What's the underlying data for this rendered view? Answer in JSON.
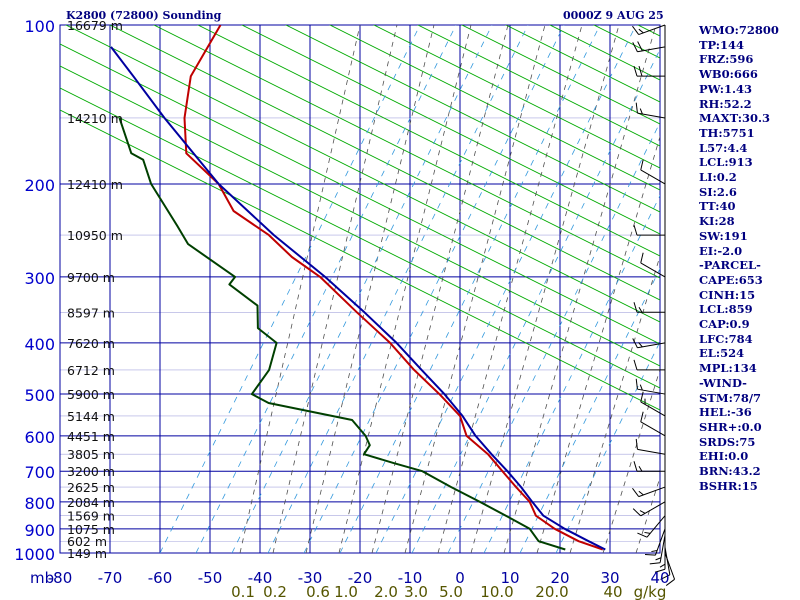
{
  "header": {
    "station": "K2800 (72800) Sounding",
    "valid": "0000Z  9 AUG 25"
  },
  "indices": [
    "WMO:72800",
    "TP:144",
    "FRZ:596",
    "WB0:666",
    "PW:1.43",
    "RH:52.2",
    "MAXT:30.3",
    "TH:5751",
    "L57:4.4",
    "LCL:913",
    "LI:0.2",
    "SI:2.6",
    "TT:40",
    "KI:28",
    "SW:191",
    "EI:-2.0",
    "-PARCEL-",
    "CAPE:653",
    "CINH:15",
    "LCL:859",
    "CAP:0.9",
    "LFC:784",
    "EL:524",
    "MPL:134",
    "-WIND-",
    "STM:78/7",
    "HEL:-36",
    "SHR+:0.0",
    "SRDS:75",
    "EHI:0.0",
    "BRN:43.2",
    "BSHR:15"
  ],
  "chart_data": {
    "type": "line",
    "diagram": "skew-T log-P",
    "title": "K2800 (72800) Sounding",
    "subtitle": "0000Z  9 AUG 25",
    "y_axis": {
      "scale": "log",
      "label": "mb",
      "ticks": [
        100,
        200,
        300,
        400,
        500,
        600,
        700,
        800,
        900,
        1000
      ],
      "range": [
        1000,
        100
      ]
    },
    "x_axis": {
      "ticks": [
        -80,
        -70,
        -60,
        -50,
        -40,
        -30,
        -20,
        -10,
        0,
        10,
        20,
        30,
        40
      ],
      "range": [
        -80,
        40
      ]
    },
    "mixing_ratio_labels": [
      "0.1",
      "0.2",
      "0.6",
      "1.0",
      "2.0",
      "3.0",
      "5.0",
      "10.0",
      "20.0",
      "40",
      "g/kg"
    ],
    "height_labels": [
      {
        "p": 100,
        "label": "16679 m"
      },
      {
        "p": 150,
        "label": "14210 m"
      },
      {
        "p": 200,
        "label": "12410 m"
      },
      {
        "p": 250,
        "label": "10950 m"
      },
      {
        "p": 300,
        "label": "9700 m"
      },
      {
        "p": 350,
        "label": "8597 m"
      },
      {
        "p": 400,
        "label": "7620 m"
      },
      {
        "p": 450,
        "label": "6712 m"
      },
      {
        "p": 500,
        "label": "5900 m"
      },
      {
        "p": 550,
        "label": "5144 m"
      },
      {
        "p": 600,
        "label": "4451 m"
      },
      {
        "p": 650,
        "label": "3805 m"
      },
      {
        "p": 700,
        "label": "3200 m"
      },
      {
        "p": 750,
        "label": "2625 m"
      },
      {
        "p": 800,
        "label": "2084 m"
      },
      {
        "p": 850,
        "label": "1569 m"
      },
      {
        "p": 900,
        "label": "1075 m"
      },
      {
        "p": 950,
        "label": "602 m"
      },
      {
        "p": 1000,
        "label": "149 m"
      }
    ],
    "series": [
      {
        "color": "#c00000",
        "points": [
          [
            985,
            28.5
          ],
          [
            950,
            23.5
          ],
          [
            900,
            18.5
          ],
          [
            850,
            14.5
          ],
          [
            800,
            13.0
          ],
          [
            750,
            10.0
          ],
          [
            700,
            7.0
          ],
          [
            650,
            3.8
          ],
          [
            600,
            -0.8
          ],
          [
            550,
            -2.5
          ],
          [
            500,
            -7.0
          ],
          [
            450,
            -12.5
          ],
          [
            400,
            -17.8
          ],
          [
            350,
            -25.0
          ],
          [
            300,
            -33.0
          ],
          [
            275,
            -39.0
          ],
          [
            250,
            -44.0
          ],
          [
            225,
            -51.5
          ],
          [
            200,
            -55.0
          ],
          [
            175,
            -62.0
          ],
          [
            150,
            -63.0
          ],
          [
            125,
            -62.5
          ],
          [
            100,
            -57.5
          ]
        ]
      },
      {
        "color": "#004000",
        "points": [
          [
            985,
            21.0
          ],
          [
            950,
            15.5
          ],
          [
            900,
            13.5
          ],
          [
            850,
            8.5
          ],
          [
            800,
            3.0
          ],
          [
            750,
            -3.0
          ],
          [
            700,
            -9.0
          ],
          [
            675,
            -15.0
          ],
          [
            650,
            -21.0
          ],
          [
            625,
            -20.0
          ],
          [
            600,
            -21.0
          ],
          [
            560,
            -24.0
          ],
          [
            520,
            -41.0
          ],
          [
            500,
            -44.5
          ],
          [
            450,
            -41.5
          ],
          [
            400,
            -40.5
          ],
          [
            375,
            -44.5
          ],
          [
            340,
            -45.0
          ],
          [
            310,
            -51.0
          ],
          [
            300,
            -50.0
          ],
          [
            260,
            -60.0
          ],
          [
            240,
            -62.5
          ],
          [
            200,
            -68.5
          ],
          [
            180,
            -70.5
          ],
          [
            175,
            -73.0
          ],
          [
            150,
            -76.0
          ]
        ]
      },
      {
        "color": "#0000a0",
        "points": [
          [
            985,
            29.0
          ],
          [
            950,
            25.5
          ],
          [
            900,
            20.5
          ],
          [
            850,
            16.0
          ],
          [
            800,
            13.5
          ],
          [
            750,
            11.0
          ],
          [
            700,
            8.0
          ],
          [
            650,
            4.5
          ],
          [
            600,
            1.0
          ],
          [
            550,
            -2.0
          ],
          [
            500,
            -6.0
          ],
          [
            450,
            -11.0
          ],
          [
            400,
            -16.5
          ],
          [
            350,
            -23.5
          ],
          [
            300,
            -32.0
          ],
          [
            250,
            -43.0
          ],
          [
            200,
            -55.0
          ],
          [
            150,
            -67.0
          ],
          [
            125,
            -74.0
          ],
          [
            110,
            -79.0
          ]
        ]
      }
    ],
    "wind_barbs": [
      {
        "p": 1000,
        "dir": 160,
        "spd": 10
      },
      {
        "p": 975,
        "dir": 170,
        "spd": 10
      },
      {
        "p": 950,
        "dir": 180,
        "spd": 15
      },
      {
        "p": 925,
        "dir": 190,
        "spd": 15
      },
      {
        "p": 900,
        "dir": 200,
        "spd": 15
      },
      {
        "p": 850,
        "dir": 220,
        "spd": 15
      },
      {
        "p": 800,
        "dir": 240,
        "spd": 15
      },
      {
        "p": 750,
        "dir": 250,
        "spd": 15
      },
      {
        "p": 700,
        "dir": 270,
        "spd": 15
      },
      {
        "p": 650,
        "dir": 280,
        "spd": 10
      },
      {
        "p": 600,
        "dir": 300,
        "spd": 10
      },
      {
        "p": 550,
        "dir": 300,
        "spd": 15
      },
      {
        "p": 500,
        "dir": 280,
        "spd": 15
      },
      {
        "p": 450,
        "dir": 270,
        "spd": 10
      },
      {
        "p": 400,
        "dir": 260,
        "spd": 15
      },
      {
        "p": 350,
        "dir": 270,
        "spd": 15
      },
      {
        "p": 300,
        "dir": 300,
        "spd": 10
      },
      {
        "p": 250,
        "dir": 270,
        "spd": 10
      },
      {
        "p": 200,
        "dir": 300,
        "spd": 10
      },
      {
        "p": 150,
        "dir": 280,
        "spd": 15
      },
      {
        "p": 125,
        "dir": 270,
        "spd": 20
      },
      {
        "p": 110,
        "dir": 260,
        "spd": 20
      },
      {
        "p": 100,
        "dir": 250,
        "spd": 15
      }
    ],
    "colors": {
      "grid": "#0000a0",
      "dry_adiabat": "#00aa00",
      "moist_adiabat": "#505050",
      "mixing_ratio": "#3399dd",
      "pressure_label": "#0000cc",
      "temp_label": "#0000a0",
      "mixing_label": "#555500",
      "height_label": "#101010",
      "wind": "#000000"
    },
    "grid": true,
    "legend": "none"
  }
}
